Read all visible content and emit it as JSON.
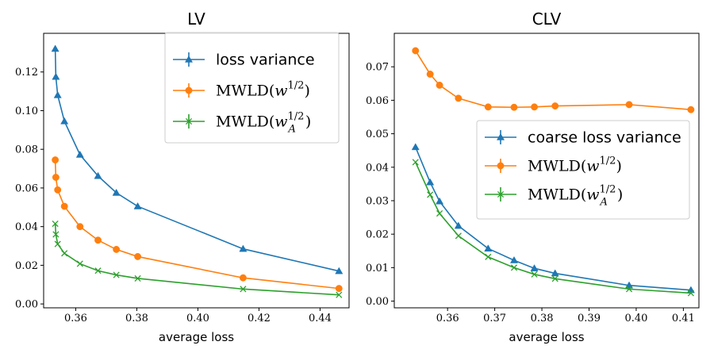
{
  "chart_data": [
    {
      "type": "line",
      "title": "LV",
      "xlabel": "average loss",
      "ylabel": "",
      "xlim": [
        0.3495,
        0.4495
      ],
      "ylim": [
        -0.002,
        0.14
      ],
      "xticks": [
        0.36,
        0.38,
        0.4,
        0.42,
        0.44
      ],
      "xtick_labels": [
        "0.36",
        "0.38",
        "0.40",
        "0.42",
        "0.44"
      ],
      "yticks": [
        0.0,
        0.02,
        0.04,
        0.06,
        0.08,
        0.1,
        0.12
      ],
      "ytick_labels": [
        "0.00",
        "0.02",
        "0.04",
        "0.06",
        "0.08",
        "0.10",
        "0.12"
      ],
      "legend_position": "top-right",
      "series": [
        {
          "name": "loss variance",
          "legend": {
            "kind": "text",
            "text": "loss variance"
          },
          "color": "#1f77b4",
          "marker": "triangle",
          "x": [
            0.3533,
            0.3535,
            0.3541,
            0.3563,
            0.3614,
            0.3673,
            0.3733,
            0.3803,
            0.4148,
            0.4462
          ],
          "y": [
            0.132,
            0.1175,
            0.108,
            0.0945,
            0.0772,
            0.0662,
            0.0575,
            0.0505,
            0.0285,
            0.017
          ]
        },
        {
          "name": "MWLD(w^{1/2})",
          "legend": {
            "kind": "mwld",
            "base": "MWLD(",
            "var": "w",
            "sub": "",
            "sup": "1/2",
            "close": ")"
          },
          "color": "#ff7f0e",
          "marker": "circle",
          "x": [
            0.3533,
            0.3535,
            0.3541,
            0.3563,
            0.3614,
            0.3673,
            0.3733,
            0.3803,
            0.4148,
            0.4462
          ],
          "y": [
            0.0745,
            0.0655,
            0.059,
            0.0505,
            0.04,
            0.033,
            0.0282,
            0.0245,
            0.0135,
            0.008
          ]
        },
        {
          "name": "MWLD(w_A^{1/2})",
          "legend": {
            "kind": "mwld",
            "base": "MWLD(",
            "var": "w",
            "sub": "A",
            "sup": "1/2",
            "close": ")"
          },
          "color": "#2ca02c",
          "marker": "x",
          "x": [
            0.3533,
            0.3535,
            0.3541,
            0.3563,
            0.3614,
            0.3673,
            0.3733,
            0.3803,
            0.4148,
            0.4462
          ],
          "y": [
            0.0415,
            0.036,
            0.031,
            0.0262,
            0.0208,
            0.0172,
            0.015,
            0.0132,
            0.0077,
            0.0047
          ]
        }
      ]
    },
    {
      "type": "line",
      "title": "CLV",
      "xlabel": "average loss",
      "ylabel": "",
      "xlim": [
        0.3487,
        0.4133
      ],
      "ylim": [
        -0.002,
        0.08
      ],
      "xticks": [
        0.36,
        0.37,
        0.38,
        0.39,
        0.4,
        0.41
      ],
      "xtick_labels": [
        "0.36",
        "0.37",
        "0.38",
        "0.39",
        "0.40",
        "0.41"
      ],
      "yticks": [
        0.0,
        0.01,
        0.02,
        0.03,
        0.04,
        0.05,
        0.06,
        0.07
      ],
      "ytick_labels": [
        "0.00",
        "0.01",
        "0.02",
        "0.03",
        "0.04",
        "0.05",
        "0.06",
        "0.07"
      ],
      "legend_position": "center-right",
      "series": [
        {
          "name": "coarse loss variance",
          "legend": {
            "kind": "text",
            "text": "coarse loss variance"
          },
          "color": "#1f77b4",
          "marker": "triangle",
          "x": [
            0.3532,
            0.3563,
            0.3583,
            0.3623,
            0.3686,
            0.3741,
            0.3784,
            0.3828,
            0.3985,
            0.4116
          ],
          "y": [
            0.046,
            0.0355,
            0.0298,
            0.0225,
            0.0157,
            0.0122,
            0.0098,
            0.0083,
            0.0047,
            0.0033
          ]
        },
        {
          "name": "MWLD(w^{1/2})",
          "legend": {
            "kind": "mwld",
            "base": "MWLD(",
            "var": "w",
            "sub": "",
            "sup": "1/2",
            "close": ")"
          },
          "color": "#ff7f0e",
          "marker": "circle",
          "x": [
            0.3532,
            0.3563,
            0.3583,
            0.3623,
            0.3686,
            0.3741,
            0.3784,
            0.3828,
            0.3985,
            0.4116
          ],
          "y": [
            0.0748,
            0.0678,
            0.0645,
            0.0606,
            0.058,
            0.0579,
            0.058,
            0.0583,
            0.0587,
            0.0572
          ]
        },
        {
          "name": "MWLD(w_A^{1/2})",
          "legend": {
            "kind": "mwld",
            "base": "MWLD(",
            "var": "w",
            "sub": "A",
            "sup": "1/2",
            "close": ")"
          },
          "color": "#2ca02c",
          "marker": "x",
          "x": [
            0.3532,
            0.3563,
            0.3583,
            0.3623,
            0.3686,
            0.3741,
            0.3784,
            0.3828,
            0.3985,
            0.4116
          ],
          "y": [
            0.0415,
            0.0318,
            0.0262,
            0.0195,
            0.0132,
            0.01,
            0.008,
            0.0067,
            0.0036,
            0.0024
          ]
        }
      ]
    }
  ]
}
